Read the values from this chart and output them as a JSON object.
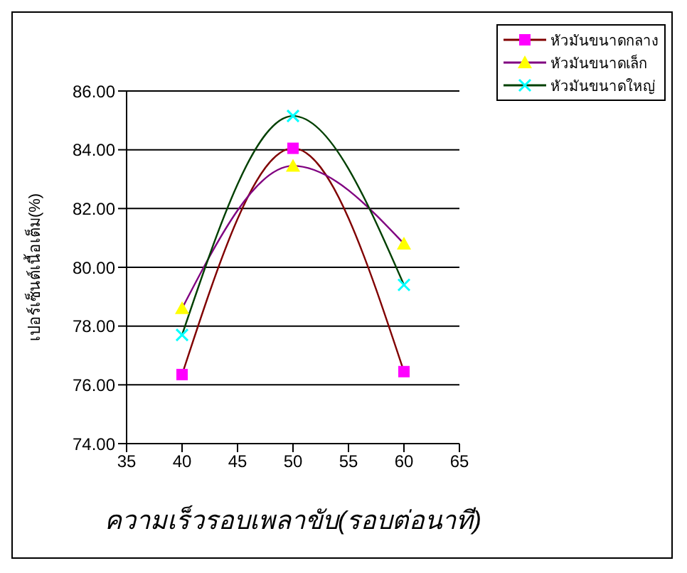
{
  "chart_data": {
    "type": "line",
    "xlabel": "ความเร็วรอบเพลาขับ(รอบต่อนาที)",
    "ylabel": "เปอร์เซ็นต์เนื้อเต็ม(%)",
    "x": [
      40,
      50,
      60
    ],
    "series": [
      {
        "name": "หัวมันขนาดกลาง",
        "color": "#800000",
        "colors": [
          "#ff00ff",
          "#ff00ff",
          "#ff00ff"
        ],
        "marker": "square",
        "values": [
          76.35,
          84.05,
          76.45
        ]
      },
      {
        "name": "หัวมันขนาดเล็ก",
        "color": "#800080",
        "colors": [
          "#ffff00",
          "#ffff00",
          "#ffff00"
        ],
        "marker": "triangle",
        "values": [
          78.6,
          83.45,
          80.8
        ]
      },
      {
        "name": "หัวมันขนาดใหญ่",
        "color": "#004000",
        "colors": [
          "#00ffff",
          "#00ffff",
          "#00ffff"
        ],
        "marker": "cross",
        "values": [
          77.7,
          85.15,
          79.4
        ]
      }
    ],
    "xlim": [
      35,
      65
    ],
    "xticks": [
      35,
      40,
      45,
      50,
      55,
      60,
      65
    ],
    "ylim": [
      74,
      86
    ],
    "yticks": [
      {
        "value": 74,
        "label": "74.00"
      },
      {
        "value": 76,
        "label": "76.00"
      },
      {
        "value": 78,
        "label": "78.00"
      },
      {
        "value": 80,
        "label": "80.00"
      },
      {
        "value": 82,
        "label": "82.00"
      },
      {
        "value": 84,
        "label": "84.00"
      },
      {
        "value": 86,
        "label": "86.00"
      }
    ],
    "grid": "y",
    "legend": "top right"
  }
}
